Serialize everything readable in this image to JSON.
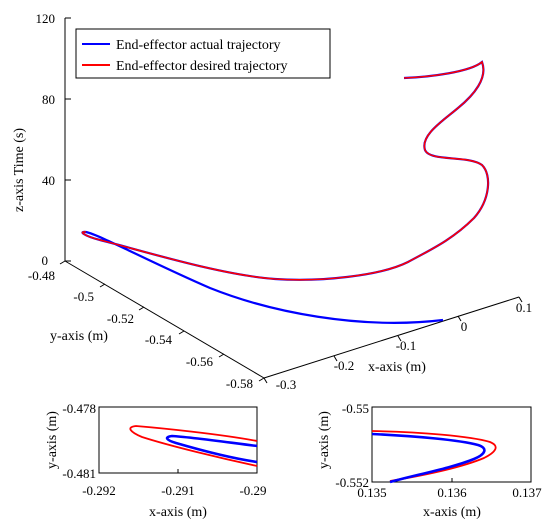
{
  "chart_data": [
    {
      "type": "line",
      "projection": "3d",
      "title": "",
      "xlabel": "x-axis (m)",
      "ylabel": "y-axis (m)",
      "zlabel": "z-axis Time (s)",
      "xlim": [
        -0.3,
        0.15
      ],
      "ylim": [
        -0.58,
        -0.48
      ],
      "zlim": [
        0,
        120
      ],
      "xticks": [
        "-0.3",
        "-0.2",
        "-0.1",
        "0",
        "0.1"
      ],
      "yticks": [
        "-0.48",
        "-0.5",
        "-0.52",
        "-0.54",
        "-0.56",
        "-0.58"
      ],
      "zticks": [
        "0",
        "40",
        "80",
        "120"
      ],
      "legend": {
        "position": "top-left",
        "entries": [
          {
            "name": "End-effector actual trajectory",
            "color": "#0000ff"
          },
          {
            "name": "End-effector desired trajectory",
            "color": "#ff0000"
          }
        ]
      },
      "series": [
        {
          "name": "End-effector actual trajectory",
          "color": "#0000ff"
        },
        {
          "name": "End-effector desired trajectory",
          "color": "#ff0000"
        }
      ]
    },
    {
      "type": "line",
      "title": "",
      "xlabel": "x-axis (m)",
      "ylabel": "y-axis (m)",
      "xlim": [
        -0.292,
        -0.29
      ],
      "ylim": [
        -0.481,
        -0.478
      ],
      "xticks": [
        "-0.292",
        "-0.291",
        "-0.29"
      ],
      "yticks": [
        "-0.478",
        "-0.481"
      ],
      "series": [
        {
          "name": "End-effector actual trajectory",
          "color": "#0000ff"
        },
        {
          "name": "End-effector desired trajectory",
          "color": "#ff0000"
        }
      ]
    },
    {
      "type": "line",
      "title": "",
      "xlabel": "x-axis (m)",
      "ylabel": "y-axis (m)",
      "xlim": [
        0.135,
        0.137
      ],
      "ylim": [
        -0.552,
        -0.55
      ],
      "xticks": [
        "0.135",
        "0.136",
        "0.137"
      ],
      "yticks": [
        "-0.55",
        "-0.552"
      ],
      "series": [
        {
          "name": "End-effector actual trajectory",
          "color": "#0000ff"
        },
        {
          "name": "End-effector desired trajectory",
          "color": "#ff0000"
        }
      ]
    }
  ]
}
